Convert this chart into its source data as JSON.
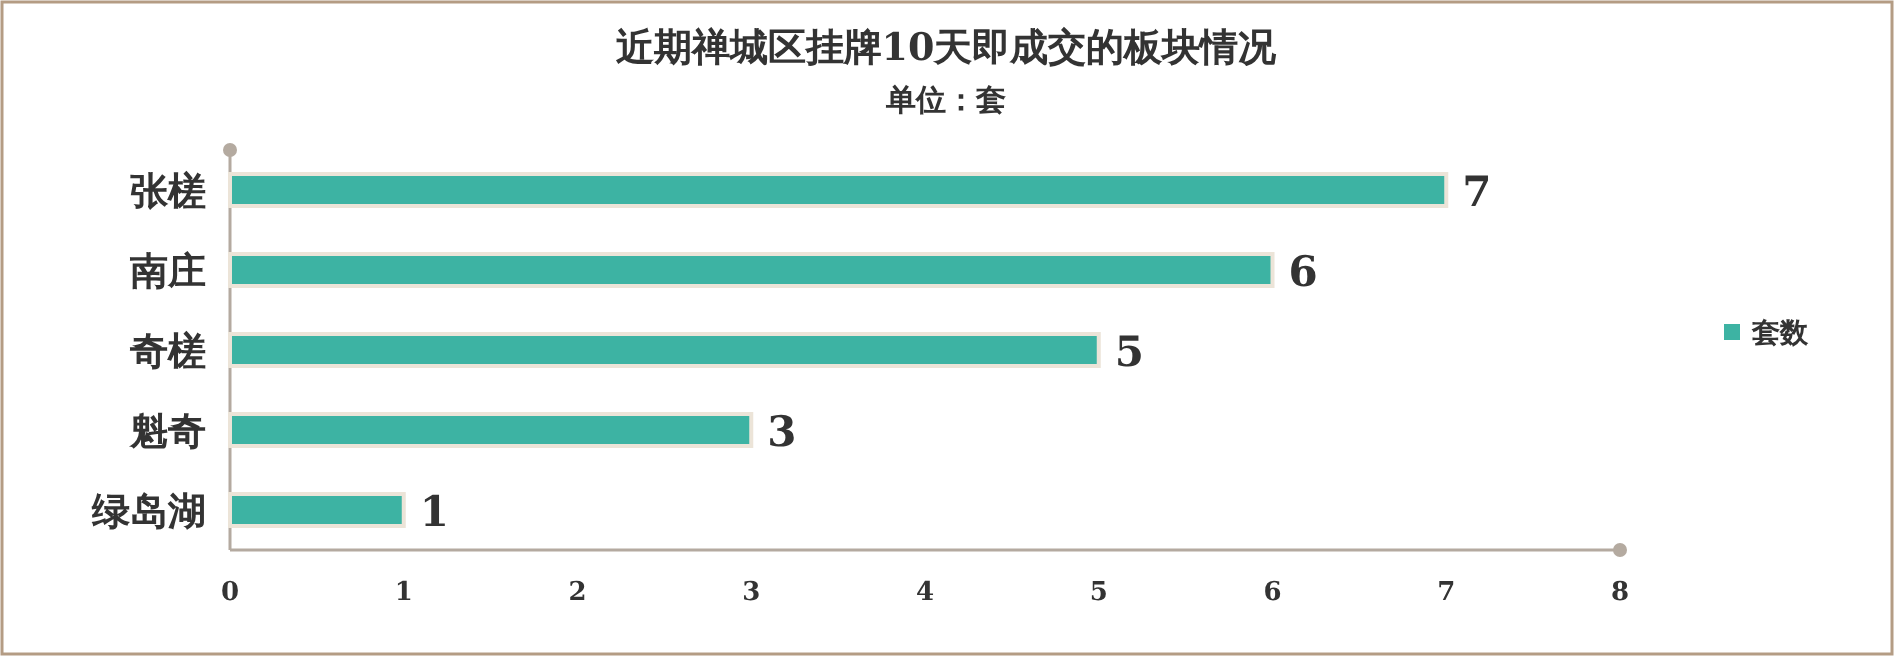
{
  "chart_data": {
    "type": "bar",
    "orientation": "horizontal",
    "title": "近期禅城区挂牌10天即成交的板块情况",
    "subtitle": "单位：套",
    "categories": [
      "张槎",
      "南庄",
      "奇槎",
      "魁奇",
      "绿岛湖"
    ],
    "series": [
      {
        "name": "套数",
        "color": "#3db3a3",
        "values": [
          7,
          6,
          5,
          3,
          1
        ]
      }
    ],
    "xlim": [
      0,
      8
    ],
    "xticks": [
      0,
      1,
      2,
      3,
      4,
      5,
      6,
      7,
      8
    ],
    "data_labels": true,
    "legend": "right",
    "grid": false
  }
}
